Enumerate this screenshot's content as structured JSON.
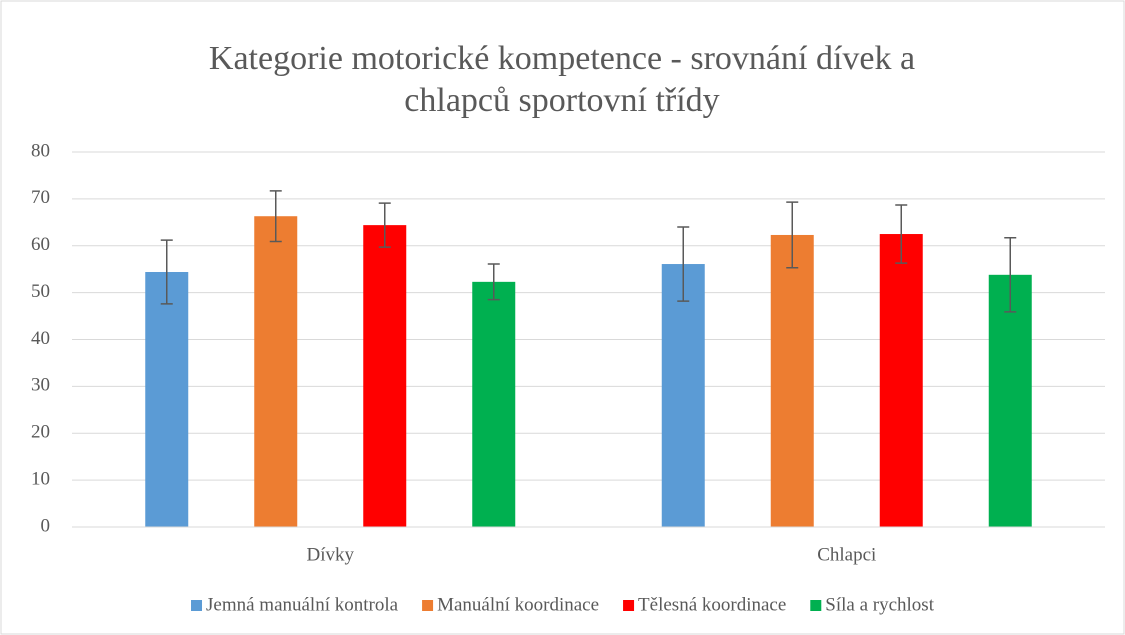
{
  "chart_data": {
    "type": "bar",
    "title": "Kategorie motorické kompetence - srovnání dívek a chlapců sportovní třídy",
    "categories": [
      "Dívky",
      "Chlapci"
    ],
    "series": [
      {
        "name": "Jemná manuální kontrola",
        "color": "#5b9bd5",
        "values": [
          54.4,
          56.1
        ],
        "errors": [
          6.8,
          7.9
        ]
      },
      {
        "name": "Manuální koordinace",
        "color": "#ed7d31",
        "values": [
          66.3,
          62.3
        ],
        "errors": [
          5.4,
          7.0
        ]
      },
      {
        "name": "Tělesná koordinace",
        "color": "#ff0000",
        "values": [
          64.4,
          62.5
        ],
        "errors": [
          4.7,
          6.2
        ]
      },
      {
        "name": "Síla a rychlost",
        "color": "#00b050",
        "values": [
          52.3,
          53.8
        ],
        "errors": [
          3.8,
          7.9
        ]
      }
    ],
    "ylim": [
      0,
      80
    ],
    "yticks": [
      0,
      10,
      20,
      30,
      40,
      50,
      60,
      70,
      80
    ],
    "grid": true,
    "legend": "bottom"
  }
}
